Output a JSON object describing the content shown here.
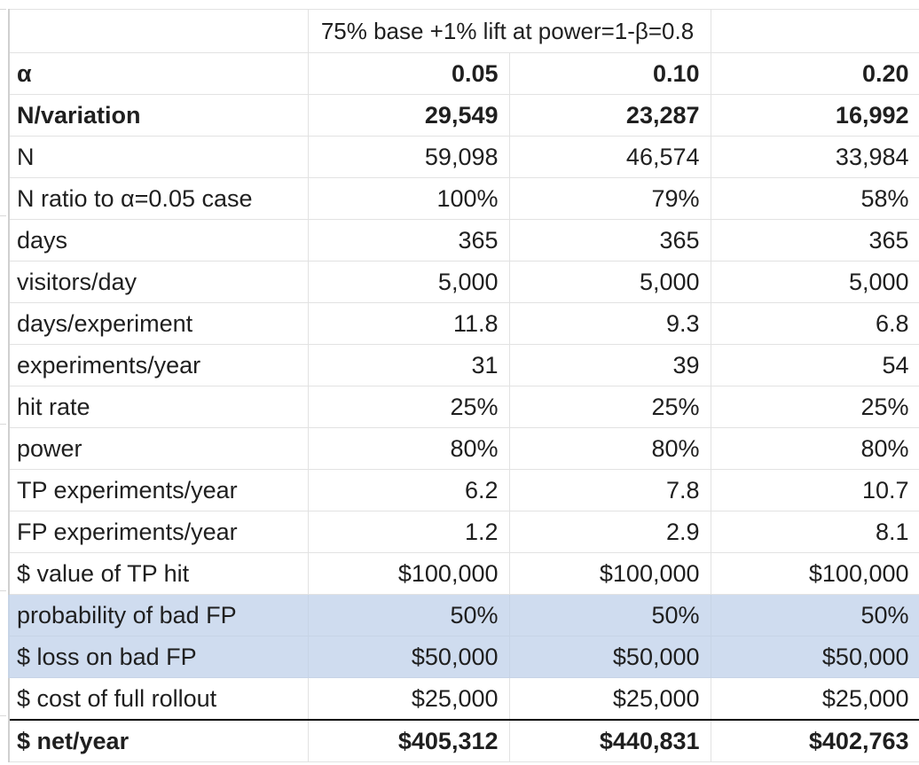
{
  "title": "75% base +1% lift at power=1-β=0.8",
  "header": {
    "label": "α",
    "values": [
      "0.05",
      "0.10",
      "0.20"
    ]
  },
  "rows": [
    {
      "label": "N/variation",
      "values": [
        "29,549",
        "23,287",
        "16,992"
      ]
    },
    {
      "label": "N",
      "values": [
        "59,098",
        "46,574",
        "33,984"
      ]
    },
    {
      "label": "N ratio to α=0.05 case",
      "values": [
        "100%",
        "79%",
        "58%"
      ]
    },
    {
      "label": "days",
      "values": [
        "365",
        "365",
        "365"
      ]
    },
    {
      "label": "visitors/day",
      "values": [
        "5,000",
        "5,000",
        "5,000"
      ]
    },
    {
      "label": "days/experiment",
      "values": [
        "11.8",
        "9.3",
        "6.8"
      ]
    },
    {
      "label": "experiments/year",
      "values": [
        "31",
        "39",
        "54"
      ]
    },
    {
      "label": "hit rate",
      "values": [
        "25%",
        "25%",
        "25%"
      ]
    },
    {
      "label": "power",
      "values": [
        "80%",
        "80%",
        "80%"
      ]
    },
    {
      "label": "TP experiments/year",
      "values": [
        "6.2",
        "7.8",
        "10.7"
      ]
    },
    {
      "label": "FP experiments/year",
      "values": [
        "1.2",
        "2.9",
        "8.1"
      ]
    },
    {
      "label": "$ value of TP hit",
      "values": [
        "$100,000",
        "$100,000",
        "$100,000"
      ]
    },
    {
      "label": "probability of bad FP",
      "values": [
        "50%",
        "50%",
        "50%"
      ]
    },
    {
      "label": "$ loss on bad FP",
      "values": [
        "$50,000",
        "$50,000",
        "$50,000"
      ]
    },
    {
      "label": "$ cost of full rollout",
      "values": [
        "$25,000",
        "$25,000",
        "$25,000"
      ]
    }
  ],
  "total": {
    "label": "$ net/year",
    "values": [
      "$405,312",
      "$440,831",
      "$402,763"
    ]
  },
  "colors": {
    "highlight_fill": "#cfdcef"
  }
}
